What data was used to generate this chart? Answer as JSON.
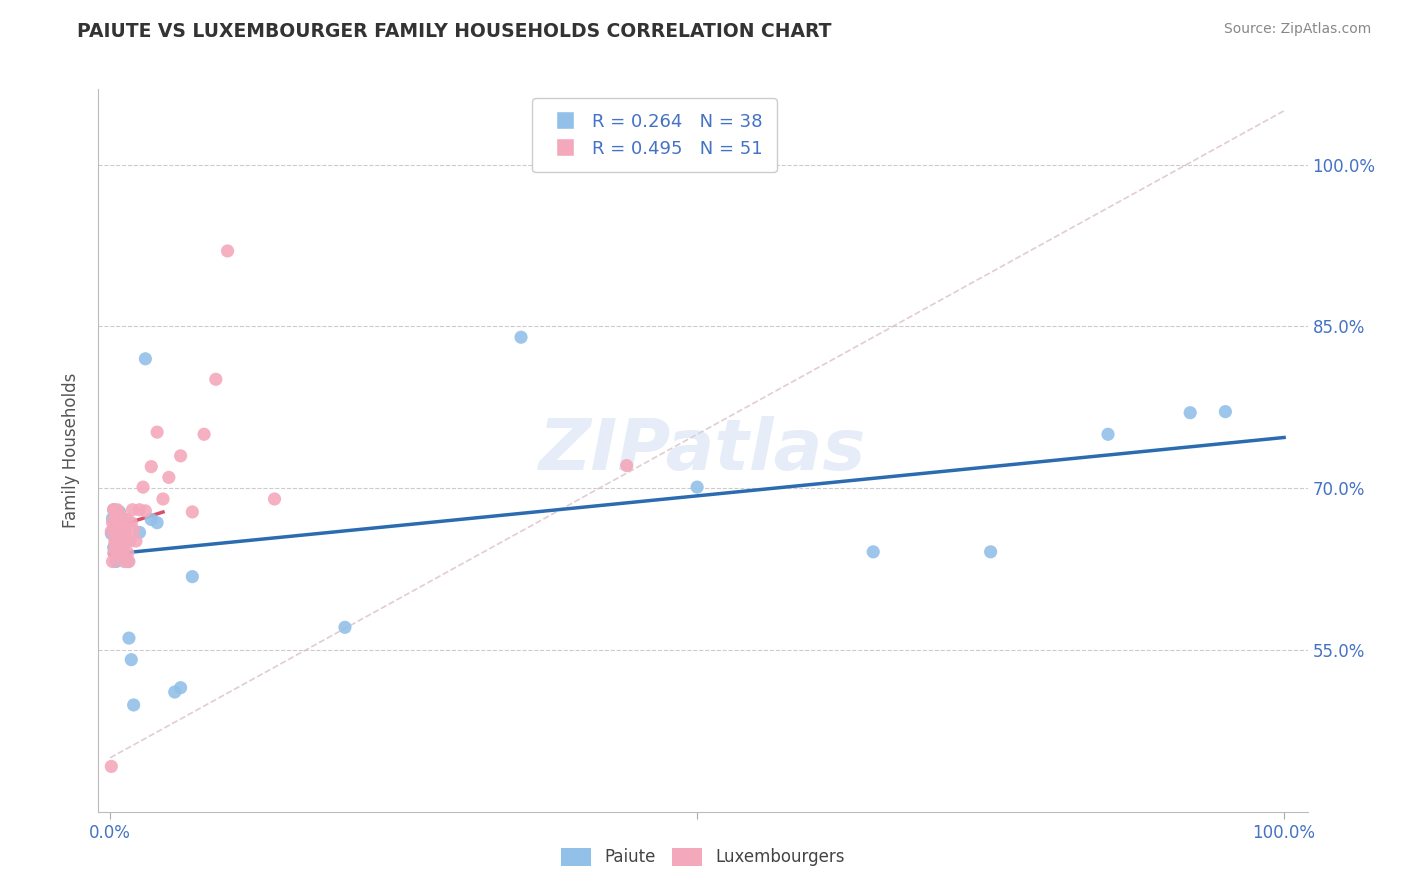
{
  "title": "PAIUTE VS LUXEMBOURGER FAMILY HOUSEHOLDS CORRELATION CHART",
  "source": "Source: ZipAtlas.com",
  "ylabel": "Family Households",
  "paiute_color": "#92C0E8",
  "luxembourger_color": "#F4A8BB",
  "paiute_line_color": "#2B6CB0",
  "luxembourger_line_color": "#D94F6A",
  "paiute_R": 0.264,
  "paiute_N": 38,
  "luxembourger_R": 0.495,
  "luxembourger_N": 51,
  "legend_text_color": "#4472C4",
  "watermark": "ZIPatlas",
  "background_color": "#FFFFFF",
  "paiute_x": [
    0.001,
    0.002,
    0.003,
    0.003,
    0.004,
    0.005,
    0.005,
    0.006,
    0.006,
    0.007,
    0.007,
    0.008,
    0.008,
    0.009,
    0.01,
    0.011,
    0.012,
    0.013,
    0.014,
    0.015,
    0.016,
    0.018,
    0.02,
    0.025,
    0.03,
    0.035,
    0.04,
    0.055,
    0.06,
    0.07,
    0.2,
    0.35,
    0.5,
    0.65,
    0.75,
    0.85,
    0.92,
    0.95
  ],
  "paiute_y": [
    0.658,
    0.672,
    0.645,
    0.68,
    0.665,
    0.632,
    0.672,
    0.651,
    0.668,
    0.642,
    0.658,
    0.678,
    0.661,
    0.666,
    0.672,
    0.641,
    0.636,
    0.661,
    0.651,
    0.632,
    0.561,
    0.541,
    0.499,
    0.659,
    0.82,
    0.671,
    0.668,
    0.511,
    0.515,
    0.618,
    0.571,
    0.84,
    0.701,
    0.641,
    0.641,
    0.75,
    0.77,
    0.771
  ],
  "luxembourger_x": [
    0.001,
    0.001,
    0.002,
    0.002,
    0.003,
    0.003,
    0.003,
    0.004,
    0.004,
    0.004,
    0.005,
    0.005,
    0.005,
    0.006,
    0.006,
    0.007,
    0.007,
    0.007,
    0.008,
    0.008,
    0.009,
    0.009,
    0.01,
    0.01,
    0.011,
    0.011,
    0.012,
    0.012,
    0.013,
    0.014,
    0.015,
    0.016,
    0.017,
    0.018,
    0.019,
    0.02,
    0.022,
    0.025,
    0.028,
    0.03,
    0.035,
    0.04,
    0.045,
    0.05,
    0.06,
    0.07,
    0.08,
    0.09,
    0.1,
    0.14,
    0.44
  ],
  "luxembourger_y": [
    0.442,
    0.66,
    0.632,
    0.668,
    0.64,
    0.68,
    0.68,
    0.648,
    0.652,
    0.672,
    0.642,
    0.66,
    0.672,
    0.648,
    0.68,
    0.662,
    0.64,
    0.678,
    0.668,
    0.648,
    0.662,
    0.64,
    0.652,
    0.672,
    0.662,
    0.642,
    0.632,
    0.652,
    0.661,
    0.671,
    0.64,
    0.632,
    0.651,
    0.668,
    0.68,
    0.661,
    0.651,
    0.68,
    0.701,
    0.679,
    0.72,
    0.752,
    0.69,
    0.71,
    0.73,
    0.678,
    0.75,
    0.801,
    0.92,
    0.69,
    0.721
  ],
  "xlim": [
    -0.01,
    1.02
  ],
  "ylim": [
    0.4,
    1.07
  ],
  "ytick_positions": [
    0.55,
    0.7,
    0.85,
    1.0
  ],
  "ytick_labels": [
    "55.0%",
    "70.0%",
    "85.0%",
    "100.0%"
  ],
  "xtick_positions": [
    0.0,
    0.5,
    1.0
  ],
  "xtick_labels": [
    "0.0%",
    "",
    "100.0%"
  ]
}
